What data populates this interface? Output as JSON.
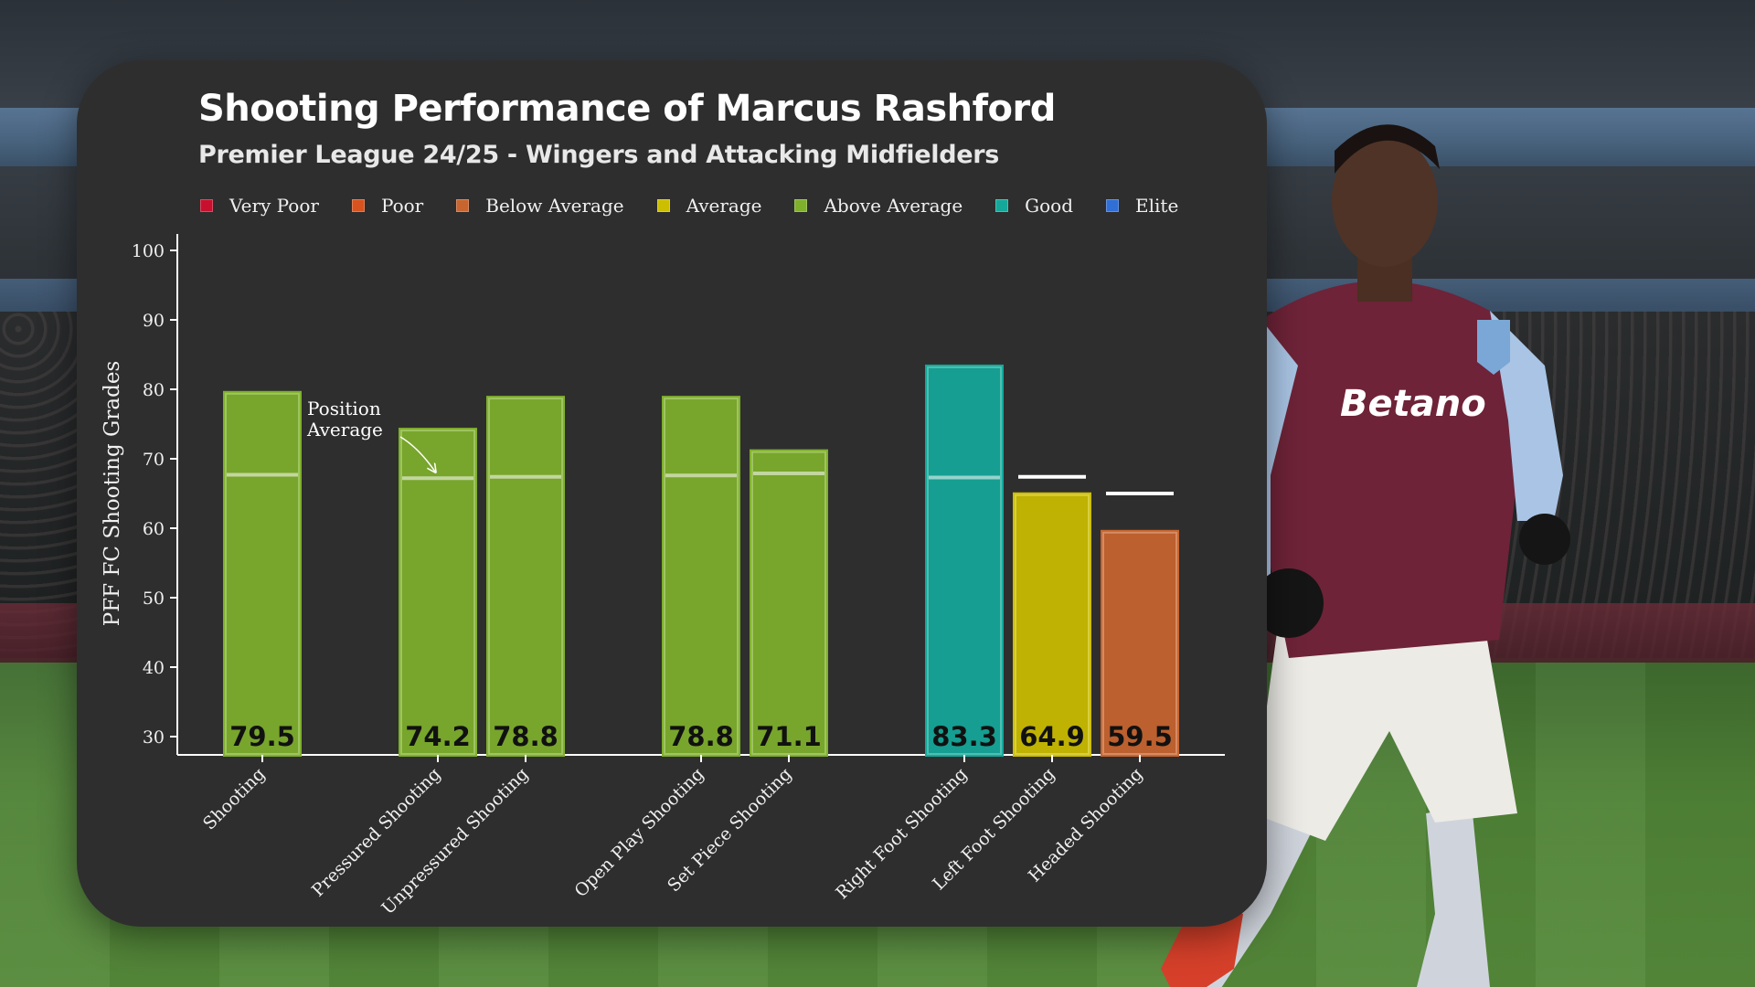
{
  "colors": {
    "very_poor": "#c8102e",
    "poor": "#d9531e",
    "below_average": "#c8652f",
    "average": "#ccbe00",
    "above_average": "#7fb02c",
    "good": "#14a89a",
    "elite": "#2f6fd6",
    "panel_bg": "#2e2e2e",
    "axis": "#ffffff"
  },
  "chart_data": {
    "type": "bar",
    "title": "Shooting Performance of Marcus Rashford",
    "subtitle": "Premier League 24/25 - Wingers and Attacking Midfielders",
    "ylabel": "PFF FC Shooting Grades",
    "xlabel": "",
    "ylim": [
      30,
      100
    ],
    "yticks": [
      30,
      40,
      50,
      60,
      70,
      80,
      90,
      100
    ],
    "grid": false,
    "legend_position": "top",
    "legend": [
      {
        "label": "Very Poor",
        "color_key": "very_poor"
      },
      {
        "label": "Poor",
        "color_key": "poor"
      },
      {
        "label": "Below Average",
        "color_key": "below_average"
      },
      {
        "label": "Average",
        "color_key": "average"
      },
      {
        "label": "Above Average",
        "color_key": "above_average"
      },
      {
        "label": "Good",
        "color_key": "good"
      },
      {
        "label": "Elite",
        "color_key": "elite"
      }
    ],
    "categories": [
      "Shooting",
      "Pressured Shooting",
      "Unpressured Shooting",
      "Open Play Shooting",
      "Set Piece Shooting",
      "Right Foot Shooting",
      "Left Foot Shooting",
      "Headed Shooting"
    ],
    "groups": [
      [
        0
      ],
      [
        1,
        2
      ],
      [
        3,
        4
      ],
      [
        5,
        6,
        7
      ]
    ],
    "values": [
      79.5,
      74.2,
      78.8,
      78.8,
      71.1,
      83.3,
      64.9,
      59.5
    ],
    "value_labels": [
      "79.5",
      "74.2",
      "78.8",
      "78.8",
      "71.1",
      "83.3",
      "64.9",
      "59.5"
    ],
    "ratings": [
      "above_average",
      "above_average",
      "above_average",
      "above_average",
      "above_average",
      "good",
      "average",
      "below_average"
    ],
    "position_average": [
      67.7,
      67.2,
      67.4,
      67.6,
      67.9,
      67.3,
      67.4,
      65.0
    ],
    "annotation": {
      "text_line1": "Position",
      "text_line2": "Average",
      "target_category": "Pressured Shooting"
    }
  }
}
